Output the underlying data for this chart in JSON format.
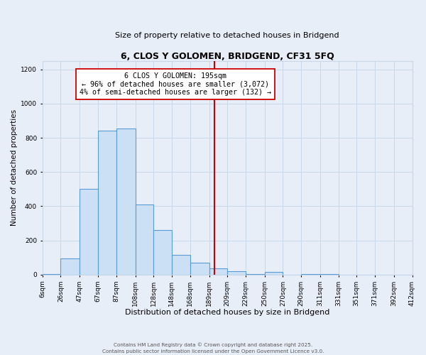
{
  "title": "6, CLOS Y GOLOMEN, BRIDGEND, CF31 5FQ",
  "subtitle": "Size of property relative to detached houses in Bridgend",
  "xlabel": "Distribution of detached houses by size in Bridgend",
  "ylabel": "Number of detached properties",
  "bin_labels": [
    "6sqm",
    "26sqm",
    "47sqm",
    "67sqm",
    "87sqm",
    "108sqm",
    "128sqm",
    "148sqm",
    "168sqm",
    "189sqm",
    "209sqm",
    "229sqm",
    "250sqm",
    "270sqm",
    "290sqm",
    "311sqm",
    "331sqm",
    "351sqm",
    "371sqm",
    "392sqm",
    "412sqm"
  ],
  "bin_edges": [
    6,
    26,
    47,
    67,
    87,
    108,
    128,
    148,
    168,
    189,
    209,
    229,
    250,
    270,
    290,
    311,
    331,
    351,
    371,
    392,
    412
  ],
  "bar_heights": [
    5,
    95,
    500,
    840,
    855,
    410,
    260,
    115,
    70,
    35,
    20,
    5,
    15,
    0,
    5,
    5,
    0,
    0,
    0,
    0
  ],
  "bar_color": "#cce0f5",
  "bar_edge_color": "#5b9bd5",
  "vline_x": 195,
  "vline_color": "#cc0000",
  "annotation_title": "6 CLOS Y GOLOMEN: 195sqm",
  "annotation_line1": "← 96% of detached houses are smaller (3,072)",
  "annotation_line2": "4% of semi-detached houses are larger (132) →",
  "annotation_box_color": "#ffffff",
  "annotation_box_edge": "#cc0000",
  "ylim": [
    0,
    1250
  ],
  "yticks": [
    0,
    200,
    400,
    600,
    800,
    1000,
    1200
  ],
  "grid_color": "#c8d8e8",
  "background_color": "#e8eef8",
  "footer1": "Contains HM Land Registry data © Crown copyright and database right 2025.",
  "footer2": "Contains public sector information licensed under the Open Government Licence v3.0."
}
